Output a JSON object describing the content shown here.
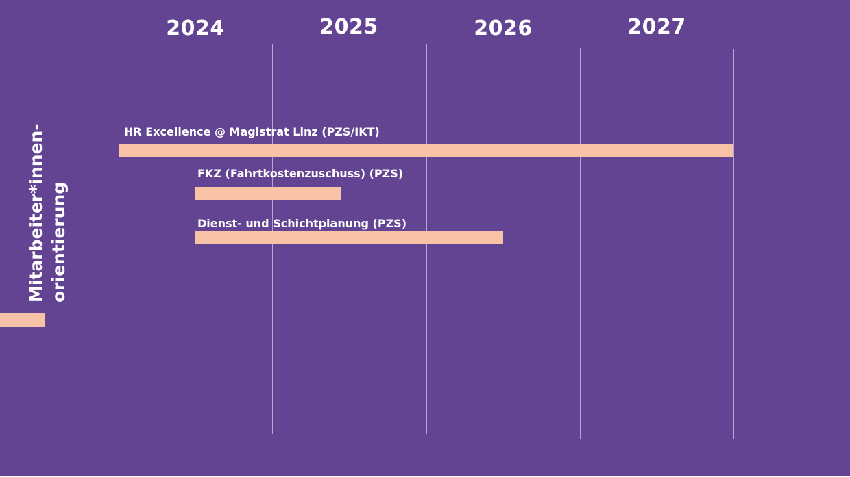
{
  "chart_data": {
    "type": "gantt",
    "title": "",
    "xlabel": "",
    "ylabel": "",
    "x_axis": {
      "categories": [
        "2024",
        "2025",
        "2026",
        "2027"
      ],
      "range": [
        2024.0,
        2028.0
      ]
    },
    "grid": true,
    "category": {
      "lines": [
        "Mitarbeiter*innen-",
        "orientierung"
      ]
    },
    "tasks": [
      {
        "label": "HR Excellence @ Magistrat Linz (PZS/IKT)",
        "start": 2024.0,
        "end": 2028.0
      },
      {
        "label": "FKZ (Fahrtkostenzuschuss) (PZS)",
        "start": 2024.5,
        "end": 2025.45
      },
      {
        "label": "Dienst- und Schichtplanung (PZS)",
        "start": 2024.5,
        "end": 2026.5
      }
    ]
  },
  "colors": {
    "background": "#634493",
    "bar": "#f8c2a6",
    "gridline": "#b6a6cf",
    "text": "#ffffff"
  }
}
